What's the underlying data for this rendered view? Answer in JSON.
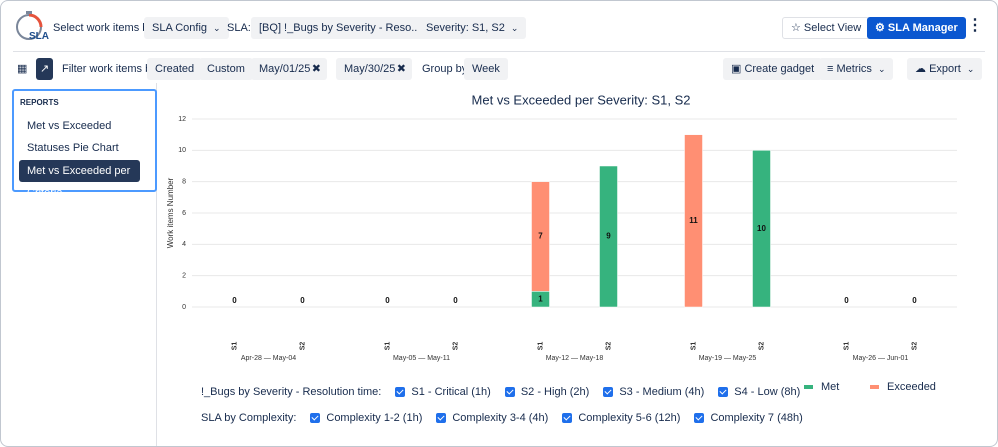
{
  "header": {
    "logo": "SLA",
    "select_label": "Select work items by:",
    "config": "SLA Config",
    "sla_label": "SLA:",
    "sla": "[BQ] !_Bugs by Severity - Reso...",
    "severity": "Severity: S1, S2",
    "select_view": "Select View",
    "manager": "SLA Manager"
  },
  "toolbar": {
    "filter_label": "Filter work items by:",
    "created": "Created",
    "custom": "Custom",
    "start": "May/01/25",
    "end": "May/30/25",
    "group_label": "Group by",
    "group": "Week",
    "gadget": "Create gadget",
    "metrics": "Metrics",
    "export": "Export"
  },
  "sidebar": {
    "title": "REPORTS",
    "items": [
      "Met vs Exceeded",
      "Statuses Pie Chart",
      "Met vs Exceeded per Criteria"
    ]
  },
  "chart_data": {
    "type": "stacked-bar",
    "title": "Met vs Exceeded per Severity: S1, S2",
    "y_label": "Work items Number",
    "categories": [
      "S1",
      "S2",
      "S1",
      "S2",
      "S1",
      "S2",
      "S1",
      "S2",
      "S1",
      "S2"
    ],
    "groups": [
      "Apr-28 — May-04",
      "May-05 — May-11",
      "May-12 — May-18",
      "May-19 — May-25",
      "May-26 — Jun-01"
    ],
    "series": [
      {
        "name": "Met",
        "color": "#36b37e",
        "values": [
          0,
          0,
          0,
          0,
          1,
          9,
          0,
          10,
          0,
          0
        ]
      },
      {
        "name": "Exceeded",
        "color": "#ff8f73",
        "values": [
          0,
          0,
          0,
          0,
          7,
          0,
          11,
          0,
          0,
          0
        ]
      }
    ],
    "ylim": [
      0,
      12
    ],
    "yticks": [
      0,
      2,
      4,
      6,
      8,
      10,
      12
    ],
    "grid": true
  },
  "filters": [
    {
      "label": "!_Bugs by Severity - Resolution time:",
      "options": [
        "S1 - Critical (1h)",
        "S2 - High (2h)",
        "S3 - Medium (4h)",
        "S4 - Low (8h)"
      ]
    },
    {
      "label": "SLA by Complexity:",
      "options": [
        "Complexity 1-2 (1h)",
        "Complexity 3-4 (4h)",
        "Complexity 5-6 (12h)",
        "Complexity 7 (48h)"
      ]
    }
  ]
}
